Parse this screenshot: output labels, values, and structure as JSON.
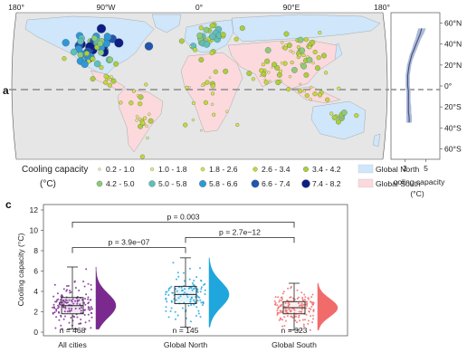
{
  "panels": {
    "a": "a",
    "b": "b",
    "c": "c"
  },
  "map": {
    "lon_ticks": [
      "180°",
      "90°W",
      "0°",
      "90°E",
      "180°"
    ],
    "ocean_color": "#e6e6e6",
    "land_north_color": "#cfe6fb",
    "land_south_color": "#fbd9dd",
    "legend": {
      "title_line1": "Cooling capacity",
      "title_line2": "(°C)",
      "bins": [
        {
          "label": "0.2 - 1.0",
          "color": "#f2f2a0"
        },
        {
          "label": "1.0 - 1.8",
          "color": "#e7ee7d"
        },
        {
          "label": "1.8 - 2.6",
          "color": "#d6e24f"
        },
        {
          "label": "2.6 - 3.4",
          "color": "#c1d838"
        },
        {
          "label": "3.4 - 4.2",
          "color": "#a9cf3a"
        },
        {
          "label": "4.2 - 5.0",
          "color": "#8ccb77"
        },
        {
          "label": "5.0 - 5.8",
          "color": "#5fc0b8"
        },
        {
          "label": "5.8 - 6.6",
          "color": "#2e98d6"
        },
        {
          "label": "6.6 - 7.4",
          "color": "#2156b0"
        },
        {
          "label": "7.4 - 8.2",
          "color": "#0d1f86"
        }
      ],
      "regions": [
        {
          "label": "Global North",
          "color": "#cfe6fb"
        },
        {
          "label": "Global South",
          "color": "#fbd9dd"
        }
      ]
    }
  },
  "chart_data": [
    {
      "type": "line",
      "panel": "b",
      "xlabel": "Cooling capacity (°C)",
      "ylabel": "",
      "x_ticks": [
        2,
        5
      ],
      "x_tick_labels": [
        "2",
        "5"
      ],
      "xlim": [
        0,
        7
      ],
      "ylim": [
        -70,
        70
      ],
      "y_ticks": [
        60,
        40,
        20,
        0,
        -20,
        -40,
        -60
      ],
      "y_tick_labels": [
        "60°N",
        "40°N",
        "20°N",
        "0°",
        "20°S",
        "40°S",
        "60°S"
      ],
      "series": [
        {
          "latitude": [
            -35,
            -30,
            -25,
            -20,
            -15,
            -10,
            -5,
            0,
            5,
            10,
            15,
            20,
            25,
            30,
            35,
            40,
            45,
            50,
            55
          ],
          "mean": [
            2.6,
            2.6,
            2.5,
            2.5,
            2.5,
            2.5,
            2.5,
            2.4,
            2.4,
            2.4,
            2.5,
            2.6,
            2.8,
            3.0,
            3.3,
            3.6,
            3.9,
            4.2,
            4.4
          ],
          "lower": [
            2.2,
            2.2,
            2.2,
            2.2,
            2.2,
            2.2,
            2.2,
            2.1,
            2.1,
            2.1,
            2.2,
            2.3,
            2.5,
            2.7,
            3.0,
            3.2,
            3.5,
            3.7,
            3.9
          ],
          "upper": [
            3.0,
            3.0,
            2.9,
            2.9,
            2.8,
            2.8,
            2.8,
            2.7,
            2.7,
            2.7,
            2.8,
            2.9,
            3.1,
            3.4,
            3.7,
            4.0,
            4.3,
            4.7,
            5.0
          ]
        }
      ]
    },
    {
      "type": "box",
      "panel": "c",
      "ylabel": "Cooling capacity (°C)",
      "ylim": [
        0,
        12
      ],
      "y_ticks": [
        0,
        2,
        4,
        6,
        8,
        10,
        12
      ],
      "categories": [
        "All cities",
        "Global North",
        "Global South"
      ],
      "n_labels": [
        "468",
        "145",
        "323"
      ],
      "n_prefix": "n = ",
      "colors": [
        "#7a2a8e",
        "#1fa6dd",
        "#f26b6b"
      ],
      "boxes": [
        {
          "min": 0.3,
          "q1": 1.8,
          "median": 2.6,
          "q3": 3.4,
          "max": 6.4
        },
        {
          "min": 0.5,
          "q1": 2.8,
          "median": 3.7,
          "q3": 4.5,
          "max": 7.3
        },
        {
          "min": 0.2,
          "q1": 1.8,
          "median": 2.4,
          "q3": 3.0,
          "max": 4.8
        }
      ],
      "comparisons": [
        {
          "from": 0,
          "to": 2,
          "y": 10.8,
          "label": "p = 0.003"
        },
        {
          "from": 1,
          "to": 2,
          "y": 9.3,
          "label": "p = 2.7e−12"
        },
        {
          "from": 0,
          "to": 1,
          "y": 8.3,
          "label": "p = 3.9e−07"
        }
      ]
    }
  ]
}
